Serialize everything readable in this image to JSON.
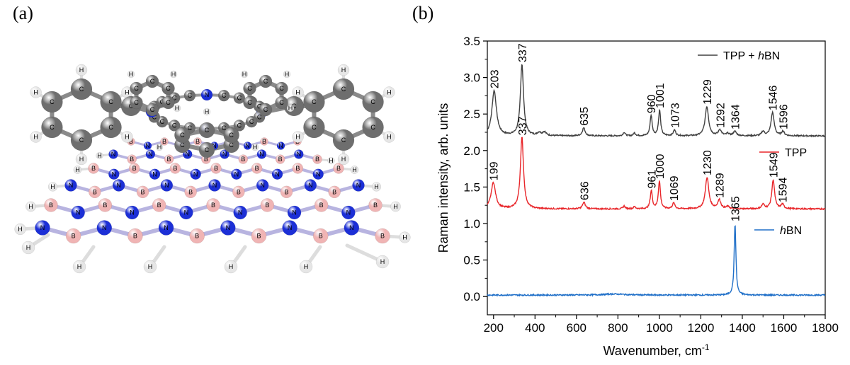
{
  "panels": {
    "a_label": "(a)",
    "b_label": "(b)"
  },
  "molecule": {
    "atom_labels": {
      "carbon": "C",
      "hydrogen": "H",
      "nitrogen": "N",
      "boron": "B"
    }
  },
  "colors": {
    "tpp_hbn": "#404040",
    "tpp": "#e8262a",
    "hbn": "#1f6fc8",
    "carbon": "#6e6e6e",
    "hydrogen": "#e6e6e6",
    "nitrogen": "#1c2fd6",
    "boron": "#f0b4b4"
  },
  "chart_data": {
    "type": "line",
    "xlabel": "Wavenumber, cm",
    "xlabel_sup": "-1",
    "ylabel": "Raman intensity, arb. units",
    "xlim": [
      170,
      1800
    ],
    "ylim": [
      -0.25,
      3.5
    ],
    "x_ticks": [
      200,
      400,
      600,
      800,
      1000,
      1200,
      1400,
      1600,
      1800
    ],
    "y_ticks": [
      "0.0",
      "0.5",
      "1.0",
      "1.5",
      "2.0",
      "2.5",
      "3.0",
      "3.5"
    ],
    "grid": false,
    "legend_position": "right, next to each trace",
    "series": [
      {
        "name": "TPP + hBN",
        "legend_text": "TPP + ",
        "legend_italic": "h",
        "legend_suffix": "BN",
        "color": "#404040",
        "baseline": 2.2,
        "peaks": [
          [
            203,
            0.62,
            13
          ],
          [
            337,
            0.98,
            9
          ],
          [
            420,
            0.04,
            10
          ],
          [
            445,
            0.05,
            10
          ],
          [
            635,
            0.11,
            8
          ],
          [
            830,
            0.05,
            6
          ],
          [
            880,
            0.04,
            6
          ],
          [
            960,
            0.28,
            6
          ],
          [
            1001,
            0.35,
            6
          ],
          [
            1073,
            0.08,
            7
          ],
          [
            1229,
            0.4,
            10
          ],
          [
            1292,
            0.08,
            9
          ],
          [
            1330,
            0.03,
            8
          ],
          [
            1364,
            0.06,
            9
          ],
          [
            1500,
            0.06,
            8
          ],
          [
            1546,
            0.32,
            9
          ],
          [
            1596,
            0.06,
            8
          ]
        ],
        "peak_labels": [
          {
            "x": 203,
            "y": 2.82,
            "text": "203"
          },
          {
            "x": 337,
            "y": 3.18,
            "text": "337"
          },
          {
            "x": 635,
            "y": 2.31,
            "text": "635"
          },
          {
            "x": 960,
            "y": 2.48,
            "text": "960"
          },
          {
            "x": 1001,
            "y": 2.55,
            "text": "1001"
          },
          {
            "x": 1073,
            "y": 2.28,
            "text": "1073"
          },
          {
            "x": 1229,
            "y": 2.6,
            "text": "1229"
          },
          {
            "x": 1292,
            "y": 2.28,
            "text": "1292"
          },
          {
            "x": 1364,
            "y": 2.26,
            "text": "1364"
          },
          {
            "x": 1546,
            "y": 2.52,
            "text": "1546"
          },
          {
            "x": 1596,
            "y": 2.26,
            "text": "1596"
          }
        ]
      },
      {
        "name": "TPP",
        "legend_text": "TPP",
        "color": "#e8262a",
        "baseline": 1.2,
        "peaks": [
          [
            199,
            0.36,
            13
          ],
          [
            337,
            0.98,
            9
          ],
          [
            636,
            0.09,
            8
          ],
          [
            830,
            0.04,
            6
          ],
          [
            880,
            0.03,
            6
          ],
          [
            961,
            0.25,
            6
          ],
          [
            1000,
            0.38,
            6
          ],
          [
            1069,
            0.08,
            7
          ],
          [
            1230,
            0.43,
            10
          ],
          [
            1289,
            0.12,
            9
          ],
          [
            1330,
            0.03,
            8
          ],
          [
            1500,
            0.06,
            8
          ],
          [
            1549,
            0.4,
            8
          ],
          [
            1594,
            0.06,
            8
          ]
        ],
        "peak_labels": [
          {
            "x": 199,
            "y": 1.56,
            "text": "199"
          },
          {
            "x": 337,
            "y": 2.18,
            "text": "337"
          },
          {
            "x": 636,
            "y": 1.29,
            "text": "636"
          },
          {
            "x": 961,
            "y": 1.45,
            "text": "961"
          },
          {
            "x": 1000,
            "y": 1.58,
            "text": "1000"
          },
          {
            "x": 1069,
            "y": 1.28,
            "text": "1069"
          },
          {
            "x": 1230,
            "y": 1.63,
            "text": "1230"
          },
          {
            "x": 1289,
            "y": 1.32,
            "text": "1289"
          },
          {
            "x": 1549,
            "y": 1.6,
            "text": "1549"
          },
          {
            "x": 1594,
            "y": 1.26,
            "text": "1594"
          }
        ]
      },
      {
        "name": "hBN",
        "legend_italic": "h",
        "legend_suffix": "BN",
        "color": "#1f6fc8",
        "baseline": 0.02,
        "peaks": [
          [
            780,
            0.015,
            60
          ],
          [
            1365,
            0.98,
            5
          ]
        ],
        "peak_labels": [
          {
            "x": 1365,
            "y": 1.0,
            "text": "1365"
          }
        ]
      }
    ]
  }
}
